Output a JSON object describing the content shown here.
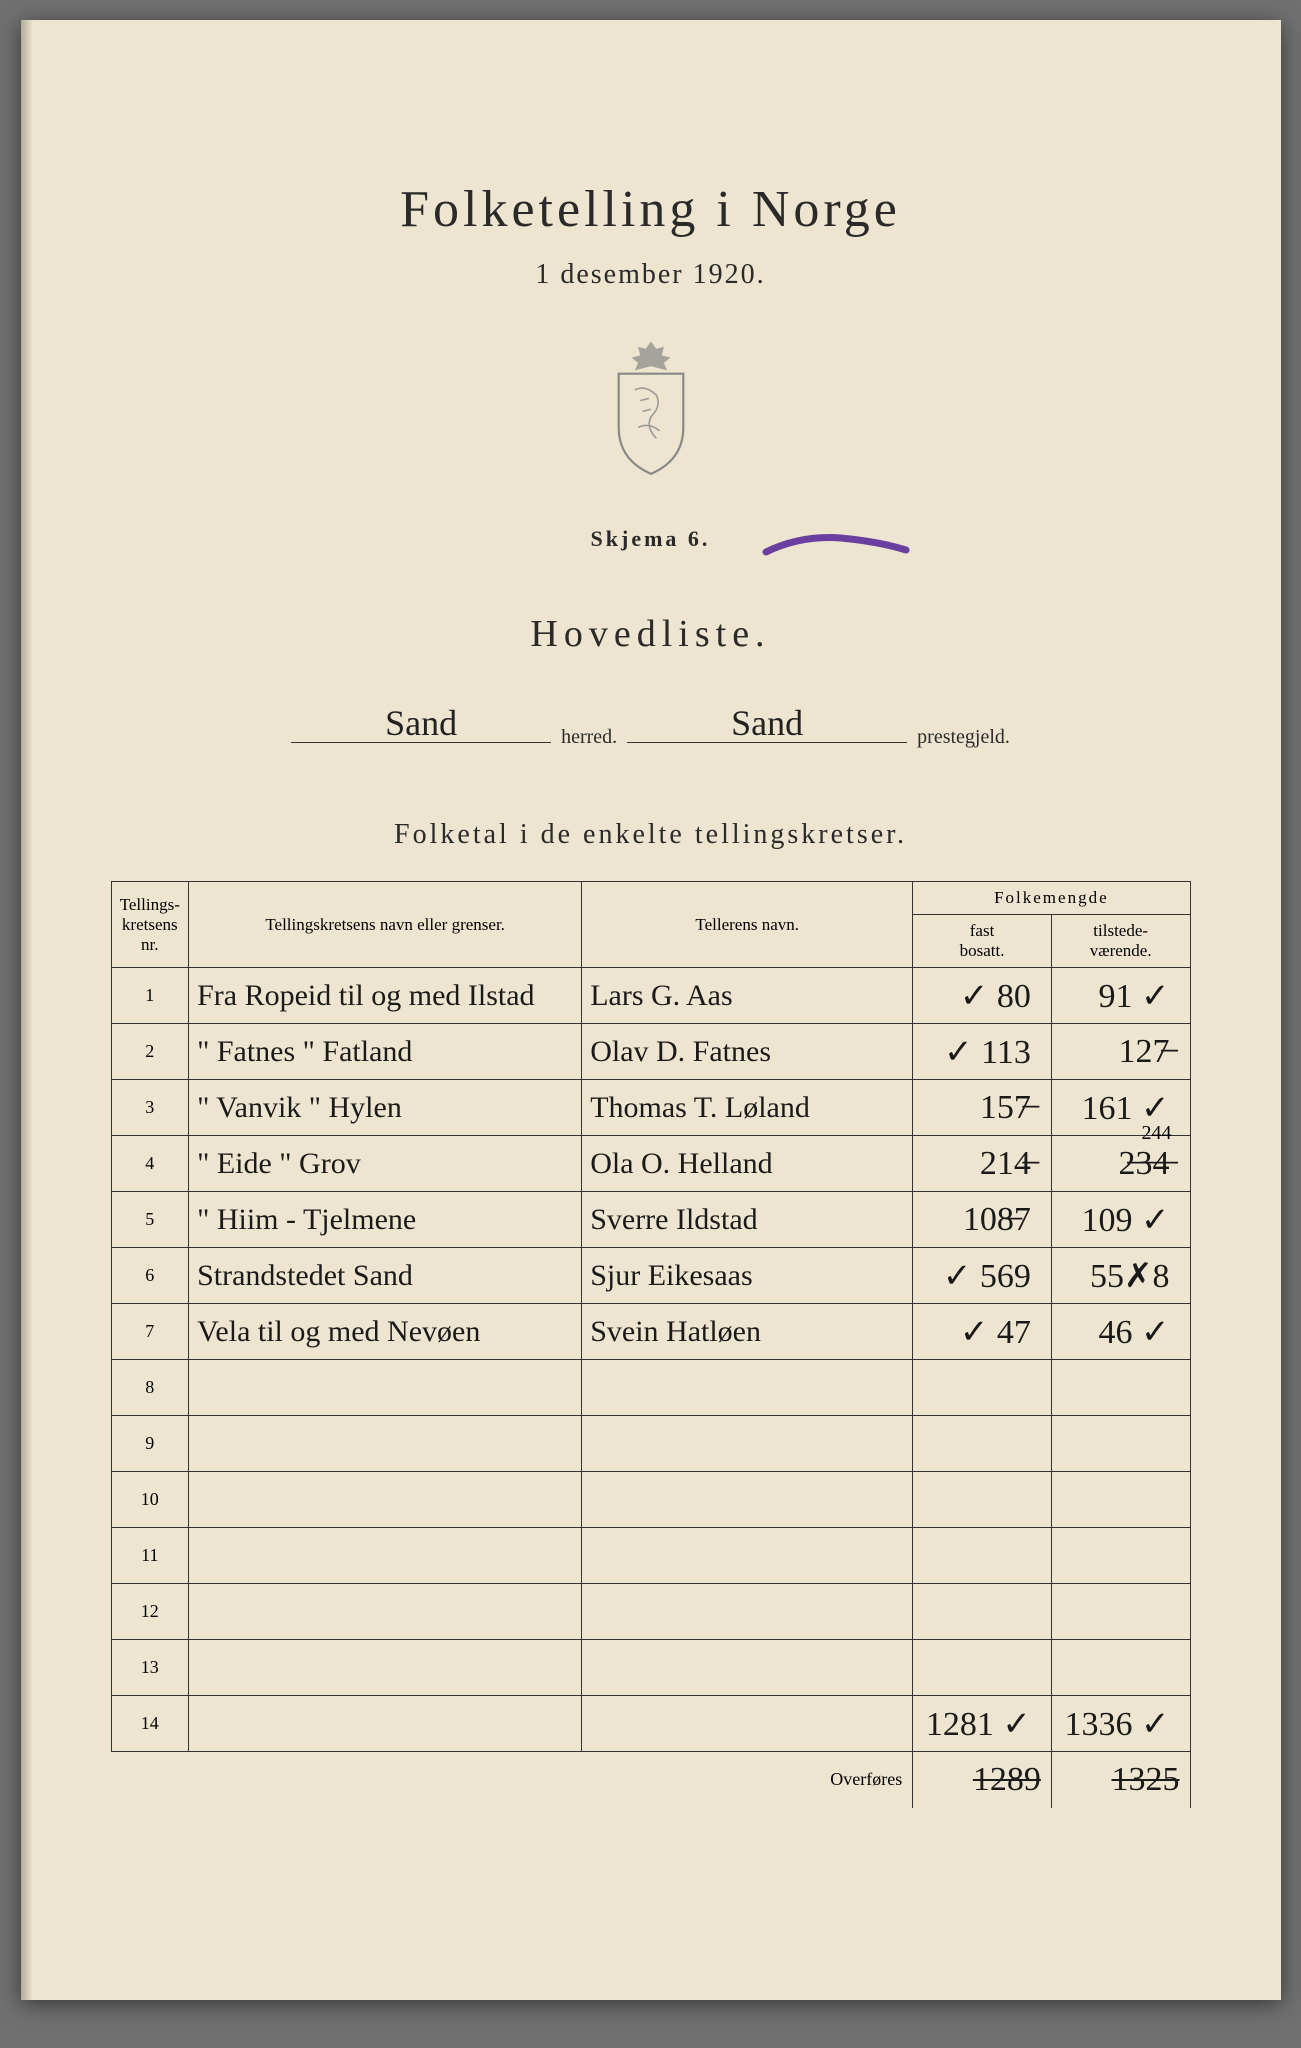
{
  "header": {
    "title": "Folketelling i Norge",
    "date": "1 desember 1920.",
    "skjema": "Skjema 6.",
    "hovedliste": "Hovedliste.",
    "herred_value": "Sand",
    "herred_label": "herred.",
    "prestegjeld_value": "Sand",
    "prestegjeld_label": "prestegjeld.",
    "subheading": "Folketal i de enkelte tellingskretser."
  },
  "table": {
    "headers": {
      "nr": "Tellings-\nkretsens\nnr.",
      "navn": "Tellingskretsens navn eller grenser.",
      "teller": "Tellerens navn.",
      "folkemengde": "Folkemengde",
      "fast": "fast\nbosatt.",
      "tilstede": "tilstede-\nværende."
    },
    "rows": [
      {
        "nr": "1",
        "navn": "Fra Ropeid til og med Ilstad",
        "teller": "Lars G. Aas",
        "fast": "✓ 80",
        "tilstede": "91 ✓"
      },
      {
        "nr": "2",
        "navn": "\"  Fatnes  \"  Fatland",
        "teller": "Olav D. Fatnes",
        "fast": "✓ 113",
        "tilstede": "127̶"
      },
      {
        "nr": "3",
        "navn": "\"  Vanvik  \"  Hylen",
        "teller": "Thomas T. Løland",
        "fast": "157̶",
        "tilstede": "161 ✓"
      },
      {
        "nr": "4",
        "navn": "\"  Eide  \"  Grov",
        "teller": "Ola O. Helland",
        "fast": "214̶",
        "tilstede": "2̶3̶4̶",
        "correction": "244"
      },
      {
        "nr": "5",
        "navn": "\"  Hiim  -  Tjelmene",
        "teller": "Sverre Ildstad",
        "fast": "108̶7",
        "tilstede": "109 ✓"
      },
      {
        "nr": "6",
        "navn": "Strandstedet Sand",
        "teller": "Sjur Eikesaas",
        "fast": "✓ 569",
        "tilstede": "55✗8"
      },
      {
        "nr": "7",
        "navn": "Vela   til og med Nevøen",
        "teller": "Svein Hatløen",
        "fast": "✓ 47",
        "tilstede": "46 ✓"
      },
      {
        "nr": "8",
        "navn": "",
        "teller": "",
        "fast": "",
        "tilstede": ""
      },
      {
        "nr": "9",
        "navn": "",
        "teller": "",
        "fast": "",
        "tilstede": ""
      },
      {
        "nr": "10",
        "navn": "",
        "teller": "",
        "fast": "",
        "tilstede": ""
      },
      {
        "nr": "11",
        "navn": "",
        "teller": "",
        "fast": "",
        "tilstede": ""
      },
      {
        "nr": "12",
        "navn": "",
        "teller": "",
        "fast": "",
        "tilstede": ""
      },
      {
        "nr": "13",
        "navn": "",
        "teller": "",
        "fast": "",
        "tilstede": ""
      },
      {
        "nr": "14",
        "navn": "",
        "teller": "",
        "fast": "1281 ✓",
        "tilstede": "1336 ✓"
      }
    ],
    "overfores": {
      "label": "Overføres",
      "fast": "1̶2̶8̶9̶",
      "tilstede": "1̶3̶2̶5̶"
    }
  },
  "colors": {
    "paper": "#ede5d0",
    "ink": "#2a2a2a",
    "handwriting": "#1a1a1a",
    "purple": "#6b3fa0",
    "crest": "#888888"
  }
}
